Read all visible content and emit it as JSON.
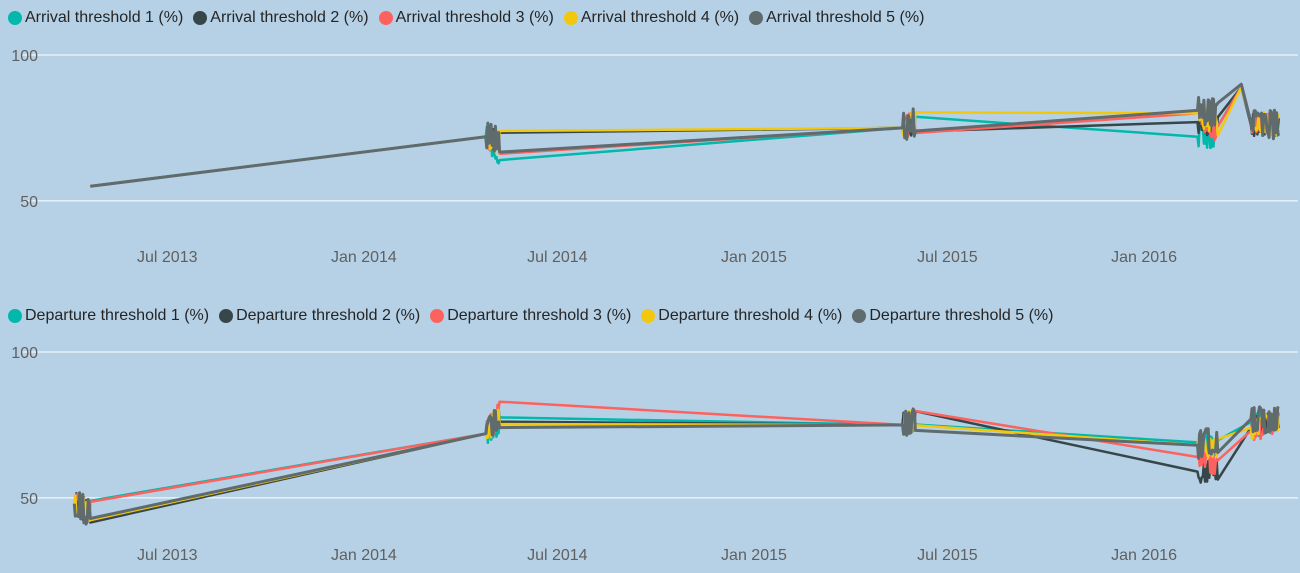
{
  "colors": {
    "series": [
      "#01b8aa",
      "#374649",
      "#fd625e",
      "#f2c80f",
      "#5f6b6d"
    ],
    "gridline": "#ffffff",
    "background": "#b6d1e5",
    "text": "#606060"
  },
  "chart_data": [
    {
      "type": "line",
      "title": "",
      "xlabel": "",
      "ylabel": "",
      "ylim": [
        40,
        100
      ],
      "y_ticks": [
        "100",
        "50"
      ],
      "y_tick_values": [
        100,
        50
      ],
      "x_ticks": [
        "Jul 2013",
        "Jan 2014",
        "Jul 2014",
        "Jan 2015",
        "Jul 2015",
        "Jan 2016"
      ],
      "x_tick_dates": [
        "2013-07-01",
        "2014-01-01",
        "2014-07-01",
        "2015-01-01",
        "2015-07-01",
        "2016-01-01"
      ],
      "xlim": [
        "2013-04-01",
        "2016-05-10"
      ],
      "legend_position": "top-left",
      "grid": true,
      "series": [
        {
          "name": "Arrival threshold 1 (%)",
          "points": [
            [
              "2013-04-20",
              55
            ],
            [
              "2014-04-25",
              72
            ],
            [
              "2014-05-08",
              66
            ],
            [
              "2015-05-20",
              75
            ],
            [
              "2015-06-01",
              77
            ],
            [
              "2016-02-20",
              72
            ],
            [
              "2016-03-10",
              72
            ],
            [
              "2016-04-01",
              89
            ],
            [
              "2016-04-10",
              77
            ],
            [
              "2016-05-06",
              76
            ]
          ]
        },
        {
          "name": "Arrival threshold 2 (%)",
          "points": [
            [
              "2013-04-20",
              55
            ],
            [
              "2014-04-25",
              72
            ],
            [
              "2014-05-08",
              70
            ],
            [
              "2015-05-20",
              75
            ],
            [
              "2015-06-01",
              77
            ],
            [
              "2016-02-20",
              77
            ],
            [
              "2016-03-10",
              76
            ],
            [
              "2016-04-01",
              89
            ],
            [
              "2016-04-10",
              76
            ],
            [
              "2016-05-06",
              76
            ]
          ]
        },
        {
          "name": "Arrival threshold 3 (%)",
          "points": [
            [
              "2013-04-20",
              55
            ],
            [
              "2014-04-25",
              72
            ],
            [
              "2014-05-08",
              70
            ],
            [
              "2015-05-20",
              75
            ],
            [
              "2015-06-01",
              77
            ],
            [
              "2016-02-20",
              80
            ],
            [
              "2016-03-10",
              73
            ],
            [
              "2016-04-01",
              89
            ],
            [
              "2016-04-10",
              77
            ],
            [
              "2016-05-06",
              76
            ]
          ]
        },
        {
          "name": "Arrival threshold 4 (%)",
          "points": [
            [
              "2013-04-20",
              55
            ],
            [
              "2014-04-25",
              72
            ],
            [
              "2014-05-08",
              70
            ],
            [
              "2015-05-20",
              75
            ],
            [
              "2015-06-01",
              77
            ],
            [
              "2016-02-20",
              80
            ],
            [
              "2016-03-10",
              75
            ],
            [
              "2016-04-01",
              89
            ],
            [
              "2016-04-10",
              77
            ],
            [
              "2016-05-06",
              76
            ]
          ]
        },
        {
          "name": "Arrival threshold 5 (%)",
          "points": [
            [
              "2013-04-20",
              55
            ],
            [
              "2014-04-25",
              72
            ],
            [
              "2014-05-08",
              71
            ],
            [
              "2015-05-20",
              75
            ],
            [
              "2015-06-01",
              77
            ],
            [
              "2016-02-20",
              81
            ],
            [
              "2016-03-10",
              80
            ],
            [
              "2016-04-01",
              90
            ],
            [
              "2016-04-10",
              77
            ],
            [
              "2016-05-06",
              76
            ]
          ]
        }
      ]
    },
    {
      "type": "line",
      "title": "",
      "xlabel": "",
      "ylabel": "",
      "ylim": [
        40,
        100
      ],
      "y_ticks": [
        "100",
        "50"
      ],
      "y_tick_values": [
        100,
        50
      ],
      "x_ticks": [
        "Jul 2013",
        "Jan 2014",
        "Jul 2014",
        "Jan 2015",
        "Jul 2015",
        "Jan 2016"
      ],
      "x_tick_dates": [
        "2013-07-01",
        "2014-01-01",
        "2014-07-01",
        "2015-01-01",
        "2015-07-01",
        "2016-01-01"
      ],
      "xlim": [
        "2013-04-01",
        "2016-05-10"
      ],
      "legend_position": "top-left",
      "grid": true,
      "series": [
        {
          "name": "Departure threshold 1 (%)",
          "points": [
            [
              "2013-04-05",
              48
            ],
            [
              "2013-04-20",
              45
            ],
            [
              "2014-04-25",
              72
            ],
            [
              "2014-05-08",
              75
            ],
            [
              "2015-05-20",
              75
            ],
            [
              "2015-06-01",
              77
            ],
            [
              "2016-02-20",
              69
            ],
            [
              "2016-03-10",
              68
            ],
            [
              "2016-04-10",
              76
            ],
            [
              "2016-05-06",
              76
            ]
          ]
        },
        {
          "name": "Departure threshold 2 (%)",
          "points": [
            [
              "2013-04-05",
              48
            ],
            [
              "2013-04-20",
              45
            ],
            [
              "2014-04-25",
              72
            ],
            [
              "2014-05-08",
              79
            ],
            [
              "2015-05-20",
              75
            ],
            [
              "2015-06-01",
              77
            ],
            [
              "2016-02-20",
              59
            ],
            [
              "2016-03-10",
              60
            ],
            [
              "2016-04-10",
              74
            ],
            [
              "2016-05-06",
              76
            ]
          ]
        },
        {
          "name": "Departure threshold 3 (%)",
          "points": [
            [
              "2013-04-05",
              48
            ],
            [
              "2013-04-20",
              45
            ],
            [
              "2014-04-25",
              72
            ],
            [
              "2014-05-08",
              79
            ],
            [
              "2015-05-20",
              75
            ],
            [
              "2015-06-01",
              77
            ],
            [
              "2016-02-20",
              64
            ],
            [
              "2016-03-10",
              60
            ],
            [
              "2016-04-10",
              73
            ],
            [
              "2016-05-06",
              76
            ]
          ]
        },
        {
          "name": "Departure threshold 4 (%)",
          "points": [
            [
              "2013-04-05",
              48
            ],
            [
              "2013-04-20",
              45
            ],
            [
              "2014-04-25",
              72
            ],
            [
              "2014-05-08",
              79
            ],
            [
              "2015-05-20",
              75
            ],
            [
              "2015-06-01",
              77
            ],
            [
              "2016-02-20",
              68
            ],
            [
              "2016-03-10",
              67
            ],
            [
              "2016-04-10",
              74
            ],
            [
              "2016-05-06",
              76
            ]
          ]
        },
        {
          "name": "Departure threshold 5 (%)",
          "points": [
            [
              "2013-04-05",
              48
            ],
            [
              "2013-04-20",
              45
            ],
            [
              "2014-04-25",
              72
            ],
            [
              "2014-05-08",
              79
            ],
            [
              "2015-05-20",
              75
            ],
            [
              "2015-06-01",
              77
            ],
            [
              "2016-02-20",
              68
            ],
            [
              "2016-03-10",
              70
            ],
            [
              "2016-04-10",
              77
            ],
            [
              "2016-05-06",
              76
            ]
          ]
        }
      ]
    }
  ]
}
